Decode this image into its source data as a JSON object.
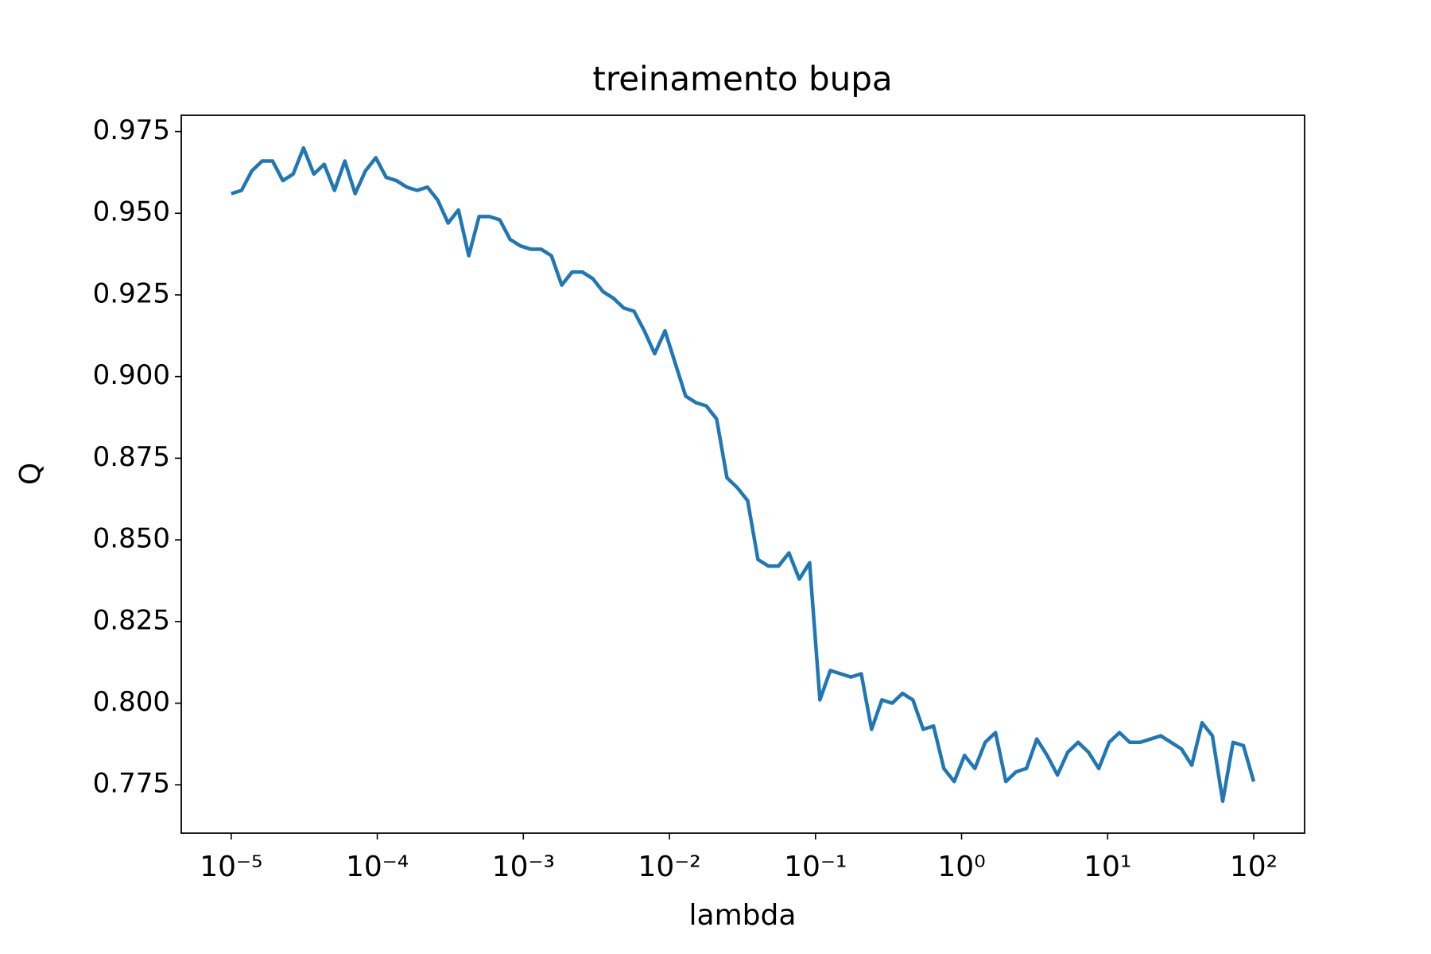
{
  "chart_data": {
    "type": "line",
    "title": "treinamento bupa",
    "x_label": "lambda",
    "y_label": "Q",
    "x_scale": "log",
    "x": [
      1e-05,
      1.177e-05,
      1.385e-05,
      1.63e-05,
      1.918e-05,
      2.257e-05,
      2.656e-05,
      3.126e-05,
      3.678e-05,
      4.329e-05,
      5.094e-05,
      5.995e-05,
      7.055e-05,
      8.302e-05,
      9.77e-05,
      0.000115,
      0.0001353,
      0.0001592,
      0.0001874,
      0.0002205,
      0.0002595,
      0.0003054,
      0.0003594,
      0.0004229,
      0.0004977,
      0.0005857,
      0.0006893,
      0.0008111,
      0.0009545,
      0.001123,
      0.001322,
      0.001556,
      0.001831,
      0.002154,
      0.002535,
      0.002984,
      0.003511,
      0.004132,
      0.004863,
      0.005722,
      0.006734,
      0.007925,
      0.009326,
      0.01097,
      0.01292,
      0.0152,
      0.01789,
      0.02105,
      0.02477,
      0.02915,
      0.03431,
      0.04037,
      0.04751,
      0.05591,
      0.06579,
      0.07743,
      0.09112,
      0.1072,
      0.1262,
      0.1485,
      0.1748,
      0.2057,
      0.242,
      0.2848,
      0.3352,
      0.3944,
      0.4642,
      0.5462,
      0.6428,
      0.7565,
      0.8902,
      1.0476,
      1.2328,
      1.4508,
      1.7074,
      2.0092,
      2.3645,
      2.7826,
      3.2745,
      3.8535,
      4.5349,
      5.3367,
      6.2803,
      7.3907,
      8.6975,
      10.235,
      12.045,
      14.175,
      16.681,
      19.63,
      23.101,
      27.186,
      31.993,
      37.649,
      44.306,
      52.14,
      61.359,
      72.208,
      84.975,
      100
    ],
    "series": [
      {
        "color": "#1f77b4",
        "values": [
          0.956,
          0.957,
          0.963,
          0.966,
          0.966,
          0.96,
          0.962,
          0.97,
          0.962,
          0.965,
          0.957,
          0.966,
          0.956,
          0.963,
          0.967,
          0.961,
          0.96,
          0.958,
          0.957,
          0.958,
          0.954,
          0.947,
          0.951,
          0.937,
          0.949,
          0.949,
          0.948,
          0.942,
          0.94,
          0.939,
          0.939,
          0.937,
          0.928,
          0.932,
          0.932,
          0.93,
          0.926,
          0.924,
          0.921,
          0.92,
          0.914,
          0.907,
          0.914,
          0.904,
          0.894,
          0.892,
          0.891,
          0.887,
          0.869,
          0.866,
          0.862,
          0.844,
          0.842,
          0.842,
          0.846,
          0.838,
          0.843,
          0.801,
          0.81,
          0.809,
          0.808,
          0.809,
          0.792,
          0.801,
          0.8,
          0.803,
          0.801,
          0.792,
          0.793,
          0.78,
          0.776,
          0.784,
          0.78,
          0.788,
          0.791,
          0.776,
          0.779,
          0.78,
          0.789,
          0.784,
          0.778,
          0.785,
          0.788,
          0.785,
          0.78,
          0.788,
          0.791,
          0.788,
          0.788,
          0.789,
          0.79,
          0.788,
          0.786,
          0.781,
          0.794,
          0.79,
          0.77,
          0.788,
          0.787,
          0.776
        ]
      }
    ],
    "xlim": [
      4.55e-06,
      223
    ],
    "ylim": [
      0.7602,
      0.98
    ],
    "xticks": [
      {
        "value": 1e-05,
        "label": "10⁻⁵"
      },
      {
        "value": 0.0001,
        "label": "10⁻⁴"
      },
      {
        "value": 0.001,
        "label": "10⁻³"
      },
      {
        "value": 0.01,
        "label": "10⁻²"
      },
      {
        "value": 0.1,
        "label": "10⁻¹"
      },
      {
        "value": 1,
        "label": "10⁰"
      },
      {
        "value": 10,
        "label": "10¹"
      },
      {
        "value": 100,
        "label": "10²"
      }
    ],
    "yticks": [
      0.775,
      {
        "value": 0.8,
        "label": "0.800"
      },
      0.825,
      {
        "value": 0.85,
        "label": "0.850"
      },
      0.875,
      {
        "value": 0.9,
        "label": "0.900"
      },
      0.925,
      {
        "value": 0.95,
        "label": "0.950"
      },
      0.975
    ],
    "grid": false
  }
}
